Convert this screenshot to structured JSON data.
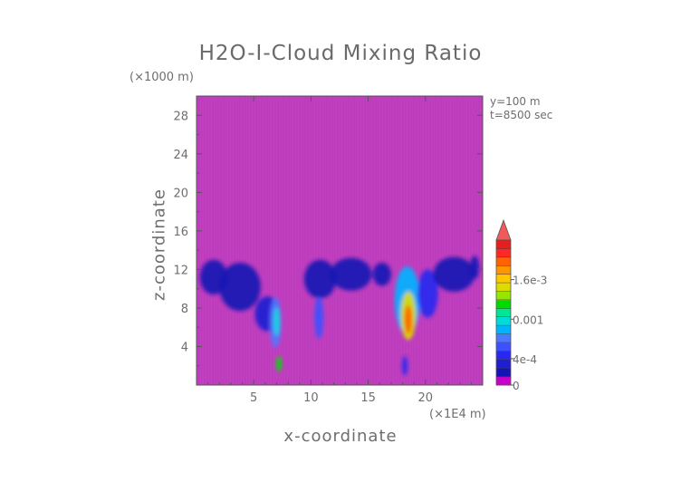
{
  "chart_data": {
    "type": "heatmap",
    "title": "H2O-I-Cloud Mixing Ratio",
    "xlabel": "x-coordinate",
    "ylabel": "z-coordinate",
    "x_unit": "(×1E4 m)",
    "y_unit": "(×1000 m)",
    "annotations": [
      "y=100 m",
      "t=8500 sec"
    ],
    "xlim": [
      0,
      25
    ],
    "ylim": [
      0,
      30
    ],
    "x_ticks": [
      5,
      10,
      15,
      20
    ],
    "y_ticks": [
      4,
      8,
      12,
      16,
      20,
      24,
      28
    ],
    "colorbar": {
      "range": [
        0,
        0.0022
      ],
      "tick_values": [
        0,
        0.0004,
        0.001,
        0.0016
      ],
      "tick_labels": [
        "0",
        "4e-4",
        "0.001",
        "1.6e-3"
      ],
      "extend": "max",
      "colors": [
        "#c800c8",
        "#1414b4",
        "#1e1ed2",
        "#2828f0",
        "#3c50ff",
        "#5078ff",
        "#00b4ff",
        "#00dcdc",
        "#00e696",
        "#00dc00",
        "#96e600",
        "#dcdc00",
        "#ffc800",
        "#ff9600",
        "#ff6400",
        "#ff2828",
        "#e61e1e"
      ],
      "background": "#c040c0",
      "over_color": "#f05a5a"
    },
    "cloud_cells": [
      {
        "x": 1.5,
        "z": 11.2,
        "sx": 1.2,
        "sz": 1.8,
        "value": 0.00012
      },
      {
        "x": 3.8,
        "z": 10.2,
        "sx": 1.8,
        "sz": 2.5,
        "value": 0.00013
      },
      {
        "x": 6.2,
        "z": 7.4,
        "sx": 1.1,
        "sz": 1.8,
        "value": 0.00025
      },
      {
        "x": 6.9,
        "z": 6.5,
        "sx": 0.5,
        "sz": 2.6,
        "value": 0.00055
      },
      {
        "x": 7.0,
        "z": 6.6,
        "sx": 0.25,
        "sz": 1.5,
        "value": 0.0009
      },
      {
        "x": 7.2,
        "z": 2.2,
        "sx": 0.25,
        "sz": 0.8,
        "value": 0.0011
      },
      {
        "x": 10.8,
        "z": 11.0,
        "sx": 1.4,
        "sz": 2.0,
        "value": 0.00012
      },
      {
        "x": 10.7,
        "z": 7.0,
        "sx": 0.4,
        "sz": 2.2,
        "value": 0.00045
      },
      {
        "x": 13.5,
        "z": 11.5,
        "sx": 1.8,
        "sz": 1.7,
        "value": 8e-05
      },
      {
        "x": 16.2,
        "z": 11.5,
        "sx": 0.8,
        "sz": 1.2,
        "value": 7e-05
      },
      {
        "x": 18.4,
        "z": 8.8,
        "sx": 1.1,
        "sz": 3.5,
        "value": 0.0008
      },
      {
        "x": 18.5,
        "z": 7.2,
        "sx": 0.65,
        "sz": 2.5,
        "value": 0.0014
      },
      {
        "x": 18.5,
        "z": 6.8,
        "sx": 0.35,
        "sz": 1.5,
        "value": 0.0019
      },
      {
        "x": 18.2,
        "z": 2.0,
        "sx": 0.25,
        "sz": 1.0,
        "value": 0.00035
      },
      {
        "x": 20.2,
        "z": 9.5,
        "sx": 0.9,
        "sz": 2.5,
        "value": 0.00035
      },
      {
        "x": 22.5,
        "z": 11.5,
        "sx": 1.8,
        "sz": 1.8,
        "value": 0.00012
      },
      {
        "x": 24.3,
        "z": 12.2,
        "sx": 0.4,
        "sz": 1.2,
        "value": 0.0001
      }
    ]
  }
}
